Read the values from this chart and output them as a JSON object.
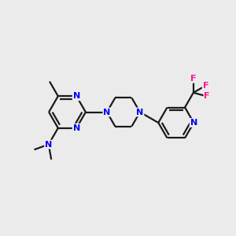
{
  "background_color": "#EBEBEB",
  "bond_color": "#1a1a1a",
  "n_color": "#0000EE",
  "f_color": "#FF1493",
  "lw": 1.6,
  "figsize": [
    3.0,
    3.0
  ],
  "dpi": 100,
  "xlim": [
    0.0,
    1.0
  ],
  "ylim": [
    0.0,
    1.0
  ]
}
